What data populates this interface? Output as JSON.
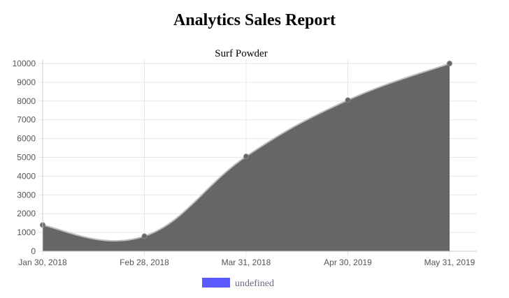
{
  "page": {
    "title": "Analytics Sales Report"
  },
  "chart_data": {
    "type": "area",
    "title": "Surf Powder",
    "categories": [
      "Jan 30, 2018",
      "Feb 28, 2018",
      "Mar 31, 2018",
      "Apr 30, 2019",
      "May 31, 2019"
    ],
    "series": [
      {
        "name": "undefined",
        "values": [
          1400,
          800,
          5050,
          8050,
          10000
        ]
      }
    ],
    "ylim": [
      0,
      10000
    ],
    "yticks": [
      0,
      1000,
      2000,
      3000,
      4000,
      5000,
      6000,
      7000,
      8000,
      9000,
      10000
    ],
    "grid": true,
    "legend_position": "bottom",
    "colors": {
      "area_fill": "#666666",
      "line": "#bdbdbd",
      "point": "#666666",
      "legend_swatch": "#5a5aff",
      "grid": "#e6e6e6"
    }
  }
}
